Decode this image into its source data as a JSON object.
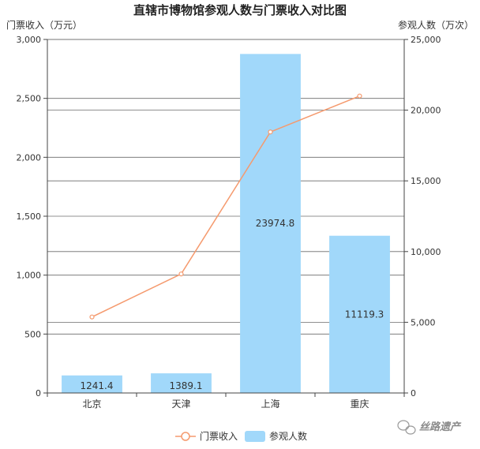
{
  "chart_data": {
    "type": "bar",
    "title": "直辖市博物馆参观人数与门票收入对比图",
    "categories": [
      "北京",
      "天津",
      "上海",
      "重庆"
    ],
    "series": [
      {
        "name": "参观人数",
        "kind": "bar",
        "axis": "right",
        "color": "#a1d8fa",
        "values": [
          1241.4,
          1389.1,
          23974.8,
          11119.3
        ],
        "data_labels": [
          "1241.4",
          "1389.1",
          "23974.8",
          "11119.3"
        ]
      },
      {
        "name": "门票收入",
        "kind": "line",
        "axis": "left",
        "color": "#f59a6e",
        "values": [
          645,
          1010,
          2215,
          2520
        ]
      }
    ],
    "y_left": {
      "label": "门票收入（万元）",
      "range": [
        0,
        3000
      ],
      "ticks": [
        0,
        500,
        1000,
        1500,
        2000,
        2500,
        3000
      ],
      "tick_labels": [
        "0",
        "500",
        "1,000",
        "1,500",
        "2,000",
        "2,500",
        "3,000"
      ]
    },
    "y_right": {
      "label": "参观人数（万次）",
      "range": [
        0,
        25000
      ],
      "ticks": [
        0,
        5000,
        10000,
        15000,
        20000,
        25000
      ],
      "tick_labels": [
        "0",
        "5,000",
        "10,000",
        "15,000",
        "20,000",
        "25,000"
      ]
    },
    "grid": true,
    "legend_position": "bottom"
  },
  "watermark": "丝路遗产"
}
